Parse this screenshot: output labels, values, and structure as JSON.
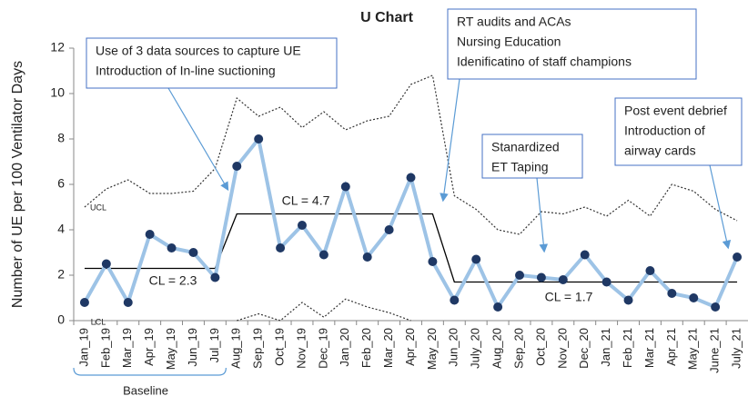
{
  "chart_data": {
    "type": "line",
    "title": "U Chart",
    "ylabel": "Number of UE per 100 Ventilator Days",
    "categories": [
      "Jan_19",
      "Feb_19",
      "Mar_19",
      "Apr_19",
      "May_19",
      "Jun_19",
      "Jul_19",
      "Aug_19",
      "Sep_19",
      "Oct_19",
      "Nov_19",
      "Dec_19",
      "Jan_20",
      "Feb_20",
      "Mar_20",
      "Apr_20",
      "May_20",
      "Jun_20",
      "July_20",
      "Aug_20",
      "Sep_20",
      "Oct_20",
      "Nov_20",
      "Dec_20",
      "Jan_21",
      "Feb_21",
      "Mar_21",
      "Apr_21",
      "May_21",
      "June_21",
      "July_21"
    ],
    "series": [
      {
        "color": "#9dc3e6",
        "marker_color": "#1f3864",
        "style": "solid",
        "values": [
          0.8,
          2.5,
          0.8,
          3.8,
          3.2,
          3.0,
          1.9,
          6.8,
          8.0,
          3.2,
          4.2,
          2.9,
          5.9,
          2.8,
          4.0,
          6.3,
          2.6,
          0.9,
          2.7,
          0.6,
          2.0,
          1.9,
          1.8,
          2.9,
          1.7,
          0.9,
          2.2,
          1.2,
          1.0,
          0.6,
          2.8
        ]
      },
      {
        "color": "#000000",
        "style": "thin",
        "values": [
          2.3,
          2.3,
          2.3,
          2.3,
          2.3,
          2.3,
          2.3,
          4.7,
          4.7,
          4.7,
          4.7,
          4.7,
          4.7,
          4.7,
          4.7,
          4.7,
          4.7,
          1.7,
          1.7,
          1.7,
          1.7,
          1.7,
          1.7,
          1.7,
          1.7,
          1.7,
          1.7,
          1.7,
          1.7,
          1.7,
          1.7
        ]
      },
      {
        "color": "#333333",
        "style": "dotted",
        "values": [
          5.0,
          5.8,
          6.2,
          5.6,
          5.6,
          5.7,
          6.7,
          9.8,
          9.0,
          9.4,
          8.5,
          9.2,
          8.4,
          8.8,
          9.0,
          10.4,
          10.8,
          5.5,
          4.9,
          4.0,
          3.8,
          4.8,
          4.7,
          5.0,
          4.6,
          5.3,
          4.6,
          6.0,
          5.7,
          4.9,
          4.4
        ]
      },
      {
        "color": "#333333",
        "style": "dotted",
        "values": [
          null,
          null,
          null,
          null,
          null,
          null,
          null,
          0,
          0.3,
          0,
          0.8,
          0.15,
          0.95,
          0.6,
          0.35,
          0,
          null,
          null,
          null,
          null,
          null,
          null,
          null,
          null,
          null,
          null,
          null,
          null,
          null,
          null,
          null
        ]
      }
    ],
    "ylim": [
      0,
      12
    ],
    "yticks": [
      0,
      2,
      4,
      6,
      8,
      10,
      12
    ],
    "line_labels": [
      "UCL",
      "LCL",
      "CL = 2.3",
      "CL = 4.7",
      "CL = 1.7",
      "Baseline"
    ],
    "annotations": [
      {
        "lines": [
          "Use of 3 data sources to capture UE",
          "Introduction of In-line suctioning"
        ]
      },
      {
        "lines": [
          "RT audits and ACAs",
          "Nursing Education",
          "Idenificatino of staff champions"
        ]
      },
      {
        "lines": [
          "Stanardized",
          "ET Taping"
        ]
      },
      {
        "lines": [
          "Post event debrief",
          "Introduction of",
          "airway cards"
        ]
      }
    ]
  }
}
